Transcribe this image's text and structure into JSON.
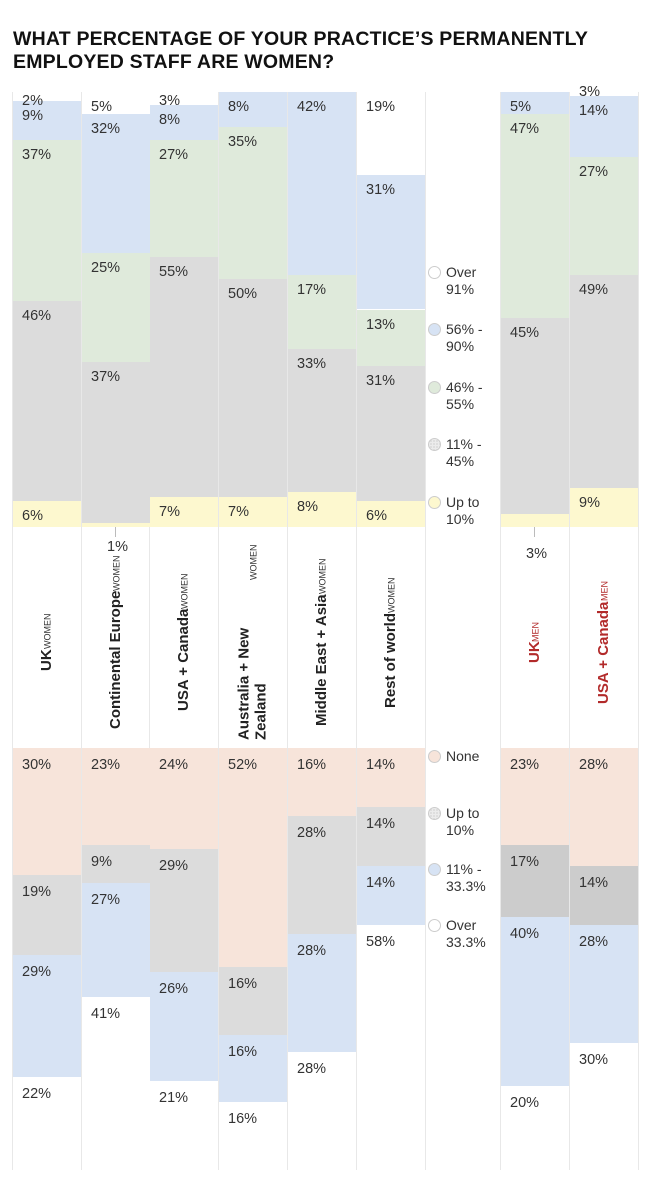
{
  "title_line1": "WHAT PERCENTAGE OF YOUR PRACTICE’S PERMANENTLY",
  "title_line2": "EMPLOYED STAFF ARE WOMEN?",
  "colors": {
    "white": "#ffffff",
    "blue": "#d7e3f4",
    "green": "#dfeadb",
    "grey": "#dcdcdc",
    "yellow": "#fdf8cf",
    "peach": "#f7e4da",
    "men_label": "#b22a2a"
  },
  "categories": [
    {
      "name": "UK",
      "group": "WOMEN"
    },
    {
      "name": "Continental Europe",
      "group": "WOMEN"
    },
    {
      "name": "USA + Canada",
      "group": "WOMEN"
    },
    {
      "name": "Australia + New Zealand",
      "group": "WOMEN"
    },
    {
      "name": "Middle East + Asia",
      "group": "WOMEN"
    },
    {
      "name": "Rest of world",
      "group": "WOMEN"
    },
    {
      "name": "UK",
      "group": "MEN"
    },
    {
      "name": "USA + Canada",
      "group": "MEN"
    }
  ],
  "chart_data": [
    {
      "type": "bar",
      "stacked": true,
      "title": "WHAT PERCENTAGE OF YOUR PRACTICE’S PERMANENTLY EMPLOYED STAFF ARE WOMEN?",
      "categories": [
        "UK WOMEN",
        "Continental Europe WOMEN",
        "USA + Canada WOMEN",
        "Australia + New Zealand WOMEN",
        "Middle East + Asia WOMEN",
        "Rest of world WOMEN",
        "UK MEN",
        "USA + Canada MEN"
      ],
      "legend_placement": "right",
      "series": [
        {
          "name": "Over 91%",
          "color": "white",
          "values": [
            2,
            5,
            3,
            0,
            0,
            19,
            0,
            3
          ]
        },
        {
          "name": "56% - 90%",
          "color": "blue",
          "values": [
            9,
            32,
            8,
            8,
            42,
            31,
            5,
            14
          ]
        },
        {
          "name": "46% - 55%",
          "color": "green",
          "values": [
            37,
            25,
            27,
            35,
            17,
            13,
            47,
            27
          ]
        },
        {
          "name": "11% - 45%",
          "color": "grey",
          "values": [
            46,
            37,
            55,
            50,
            33,
            31,
            45,
            49
          ]
        },
        {
          "name": "Up to 10%",
          "color": "yellow",
          "values": [
            6,
            1,
            7,
            7,
            8,
            6,
            3,
            9
          ]
        }
      ],
      "legend": [
        {
          "label_a": "Over",
          "label_b": "91%"
        },
        {
          "label_a": "56% -",
          "label_b": "90%"
        },
        {
          "label_a": "46% -",
          "label_b": "55%"
        },
        {
          "label_a": "11% -",
          "label_b": "45%"
        },
        {
          "label_a": "Up to",
          "label_b": "10%"
        }
      ]
    },
    {
      "type": "bar",
      "stacked": true,
      "categories": [
        "UK WOMEN",
        "Continental Europe WOMEN",
        "USA + Canada WOMEN",
        "Australia + New Zealand WOMEN",
        "Middle East + Asia WOMEN",
        "Rest of world WOMEN",
        "UK MEN",
        "USA + Canada MEN"
      ],
      "legend_placement": "right",
      "series": [
        {
          "name": "None",
          "color": "peach",
          "values": [
            30,
            23,
            24,
            52,
            16,
            14,
            23,
            28
          ]
        },
        {
          "name": "Up to 10%",
          "color": "grey",
          "values": [
            19,
            9,
            29,
            16,
            28,
            14,
            17,
            14
          ]
        },
        {
          "name": "11% - 33.3%",
          "color": "blue",
          "values": [
            29,
            27,
            26,
            16,
            28,
            14,
            40,
            28
          ]
        },
        {
          "name": "Over 33.3%",
          "color": "white",
          "values": [
            22,
            41,
            21,
            16,
            28,
            58,
            20,
            30
          ]
        }
      ],
      "legend": [
        {
          "label_a": "None",
          "label_b": ""
        },
        {
          "label_a": "Up to",
          "label_b": "10%"
        },
        {
          "label_a": "11% -",
          "label_b": "33.3%"
        },
        {
          "label_a": "Over",
          "label_b": "33.3%"
        }
      ]
    }
  ]
}
